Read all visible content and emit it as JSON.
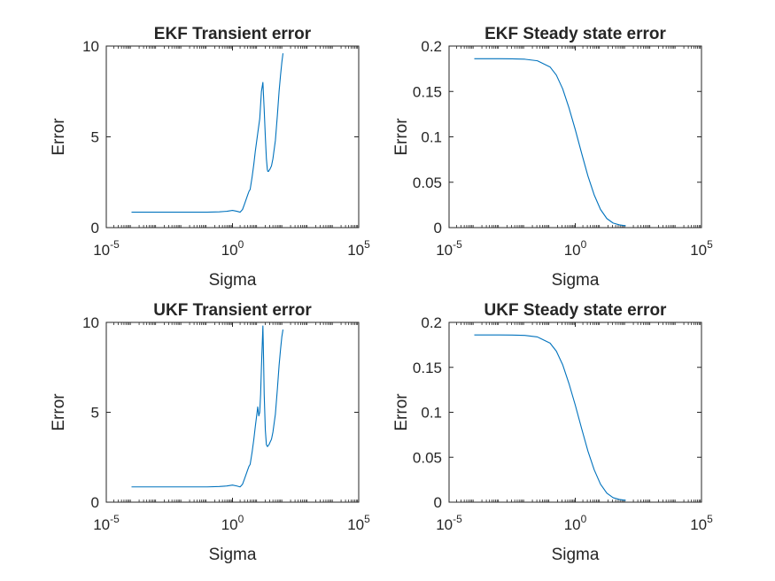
{
  "figure": {
    "background": "#ffffff"
  },
  "style": {
    "line_color": "#0072BD",
    "axis_color": "#262626"
  },
  "chart_data": [
    {
      "type": "line",
      "title": "EKF Transient error",
      "xlabel": "Sigma",
      "ylabel": "Error",
      "xscale": "log",
      "xlim": [
        1e-05,
        100000.0
      ],
      "ylim": [
        0,
        10
      ],
      "xticks": [
        {
          "value": 1e-05,
          "base": "10",
          "exp": "-5"
        },
        {
          "value": 1,
          "base": "10",
          "exp": "0"
        },
        {
          "value": 100000.0,
          "base": "10",
          "exp": "5"
        }
      ],
      "yticks": [
        {
          "value": 0,
          "label": "0"
        },
        {
          "value": 5,
          "label": "5"
        },
        {
          "value": 10,
          "label": "10"
        }
      ],
      "grid": false,
      "series": [
        {
          "x": [
            0.0001,
            0.001,
            0.01,
            0.1,
            0.3,
            0.6,
            1.0,
            1.5,
            2.0,
            2.5,
            3.0,
            4.0,
            4.5,
            5.0,
            6.0,
            7.0,
            8.0,
            10.0,
            12.0,
            14.0,
            16.0,
            18.0,
            20.0,
            22.0,
            24.0,
            25.0,
            26.0,
            27.0,
            28.0,
            30.0,
            35.0,
            40.0,
            50.0,
            60.0,
            70.0,
            80.0,
            90.0,
            100.0
          ],
          "y": [
            0.85,
            0.85,
            0.85,
            0.85,
            0.87,
            0.9,
            0.95,
            0.9,
            0.85,
            1.0,
            1.3,
            1.8,
            2.0,
            2.1,
            2.8,
            3.5,
            4.2,
            5.2,
            6.0,
            7.5,
            8.0,
            6.5,
            5.0,
            3.8,
            3.2,
            3.1,
            3.1,
            3.1,
            3.15,
            3.2,
            3.4,
            3.8,
            4.8,
            6.2,
            7.5,
            8.4,
            9.1,
            9.6
          ]
        }
      ]
    },
    {
      "type": "line",
      "title": "EKF Steady state error",
      "xlabel": "Sigma",
      "ylabel": "Error",
      "xscale": "log",
      "xlim": [
        1e-05,
        100000.0
      ],
      "ylim": [
        0,
        0.2
      ],
      "xticks": [
        {
          "value": 1e-05,
          "base": "10",
          "exp": "-5"
        },
        {
          "value": 1,
          "base": "10",
          "exp": "0"
        },
        {
          "value": 100000.0,
          "base": "10",
          "exp": "5"
        }
      ],
      "yticks": [
        {
          "value": 0,
          "label": "0"
        },
        {
          "value": 0.05,
          "label": "0.05"
        },
        {
          "value": 0.1,
          "label": "0.1"
        },
        {
          "value": 0.15,
          "label": "0.15"
        },
        {
          "value": 0.2,
          "label": "0.2"
        }
      ],
      "grid": false,
      "series": [
        {
          "x": [
            0.0001,
            0.000316,
            0.001,
            0.00316,
            0.01,
            0.0316,
            0.1,
            0.178,
            0.316,
            0.562,
            1.0,
            1.78,
            3.16,
            5.62,
            10.0,
            17.8,
            31.6,
            56.2,
            100.0
          ],
          "y": [
            0.186,
            0.186,
            0.186,
            0.1859,
            0.1855,
            0.1838,
            0.177,
            0.168,
            0.153,
            0.132,
            0.108,
            0.082,
            0.057,
            0.036,
            0.02,
            0.01,
            0.005,
            0.003,
            0.002
          ]
        }
      ]
    },
    {
      "type": "line",
      "title": "UKF Transient error",
      "xlabel": "Sigma",
      "ylabel": "Error",
      "xscale": "log",
      "xlim": [
        1e-05,
        100000.0
      ],
      "ylim": [
        0,
        10
      ],
      "xticks": [
        {
          "value": 1e-05,
          "base": "10",
          "exp": "-5"
        },
        {
          "value": 1,
          "base": "10",
          "exp": "0"
        },
        {
          "value": 100000.0,
          "base": "10",
          "exp": "5"
        }
      ],
      "yticks": [
        {
          "value": 0,
          "label": "0"
        },
        {
          "value": 5,
          "label": "5"
        },
        {
          "value": 10,
          "label": "10"
        }
      ],
      "grid": false,
      "series": [
        {
          "x": [
            0.0001,
            0.001,
            0.01,
            0.1,
            0.3,
            0.6,
            1.0,
            1.5,
            2.0,
            2.5,
            3.0,
            4.0,
            4.5,
            5.0,
            6.0,
            7.0,
            8.0,
            10.0,
            11.0,
            12.0,
            13.0,
            14.0,
            16.0,
            17.0,
            18.0,
            20.0,
            22.0,
            24.0,
            25.0,
            26.0,
            28.0,
            30.0,
            35.0,
            40.0,
            50.0,
            60.0,
            70.0,
            80.0,
            90.0,
            100.0
          ],
          "y": [
            0.85,
            0.85,
            0.85,
            0.85,
            0.87,
            0.9,
            0.95,
            0.9,
            0.85,
            1.0,
            1.3,
            1.8,
            2.0,
            2.1,
            2.8,
            3.5,
            4.2,
            5.3,
            4.8,
            5.0,
            6.0,
            7.5,
            9.8,
            8.0,
            6.0,
            4.0,
            3.2,
            3.1,
            3.1,
            3.15,
            3.2,
            3.3,
            3.5,
            3.9,
            4.9,
            6.3,
            7.6,
            8.5,
            9.2,
            9.6
          ]
        }
      ]
    },
    {
      "type": "line",
      "title": "UKF Steady state error",
      "xlabel": "Sigma",
      "ylabel": "Error",
      "xscale": "log",
      "xlim": [
        1e-05,
        100000.0
      ],
      "ylim": [
        0,
        0.2
      ],
      "xticks": [
        {
          "value": 1e-05,
          "base": "10",
          "exp": "-5"
        },
        {
          "value": 1,
          "base": "10",
          "exp": "0"
        },
        {
          "value": 100000.0,
          "base": "10",
          "exp": "5"
        }
      ],
      "yticks": [
        {
          "value": 0,
          "label": "0"
        },
        {
          "value": 0.05,
          "label": "0.05"
        },
        {
          "value": 0.1,
          "label": "0.1"
        },
        {
          "value": 0.15,
          "label": "0.15"
        },
        {
          "value": 0.2,
          "label": "0.2"
        }
      ],
      "grid": false,
      "series": [
        {
          "x": [
            0.0001,
            0.000316,
            0.001,
            0.00316,
            0.01,
            0.0316,
            0.1,
            0.178,
            0.316,
            0.562,
            1.0,
            1.78,
            3.16,
            5.62,
            10.0,
            17.8,
            31.6,
            56.2,
            100.0
          ],
          "y": [
            0.186,
            0.186,
            0.186,
            0.1859,
            0.1855,
            0.1838,
            0.177,
            0.168,
            0.153,
            0.132,
            0.108,
            0.082,
            0.057,
            0.036,
            0.02,
            0.01,
            0.005,
            0.003,
            0.002
          ]
        }
      ]
    }
  ]
}
